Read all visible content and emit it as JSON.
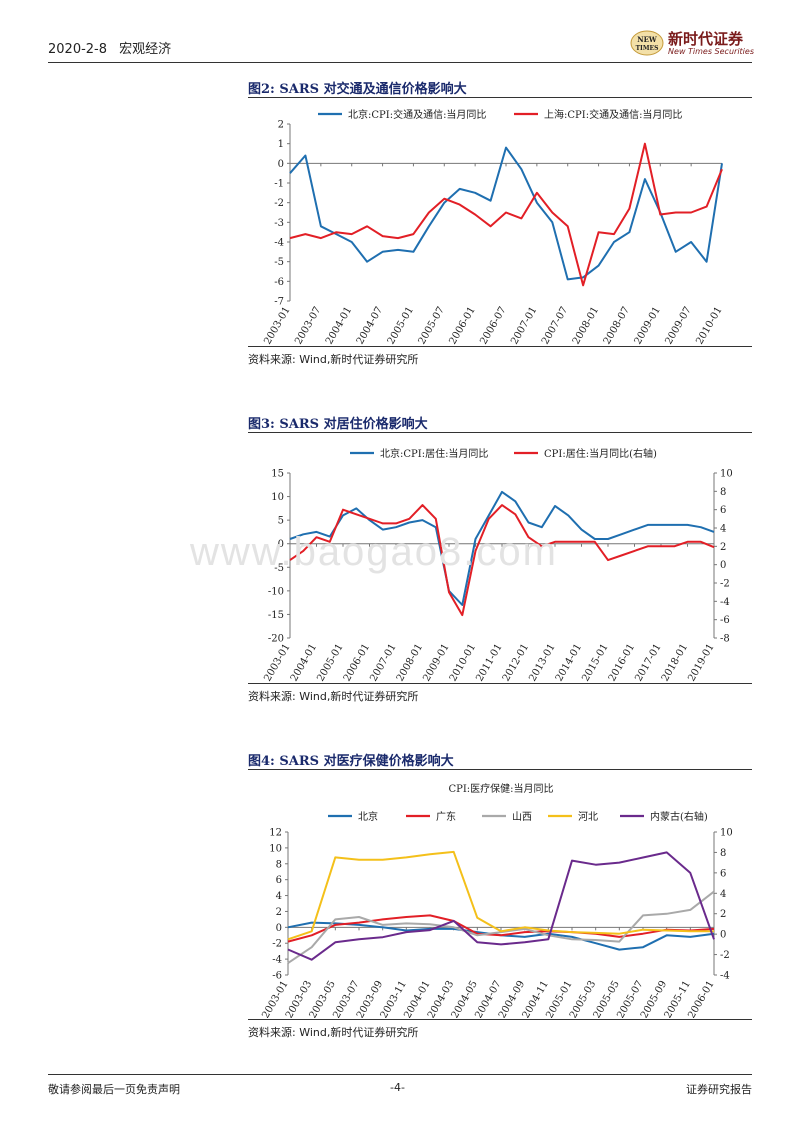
{
  "header": {
    "date": "2020-2-8",
    "section": "宏观经济",
    "brand_cn": "新时代证券",
    "brand_en": "New Times Securities"
  },
  "figures": [
    {
      "title": "图2:  SARS 对交通及通信价格影响大",
      "source": "资料来源:  Wind,新时代证券研究所"
    },
    {
      "title": "图3:  SARS 对居住价格影响大",
      "source": "资料来源:  Wind,新时代证券研究所"
    },
    {
      "title": "图4:  SARS 对医疗保健价格影响大",
      "source": "资料来源:  Wind,新时代证券研究所"
    }
  ],
  "watermark": "www.baogao8.com",
  "footer": {
    "left": "敬请参阅最后一页免责声明",
    "center": "-4-",
    "right": "证券研究报告"
  },
  "colors": {
    "blue": "#1f6fb0",
    "red": "#e21f26",
    "gray": "#a9a9a9",
    "yellow": "#f4c01a",
    "purple": "#6a2a8c"
  },
  "chart_data": [
    {
      "type": "line",
      "title": "",
      "x": [
        "2003-01",
        "2003-04",
        "2003-07",
        "2003-10",
        "2004-01",
        "2004-04",
        "2004-07",
        "2004-10",
        "2005-01",
        "2005-04",
        "2005-07",
        "2005-10",
        "2006-01",
        "2006-04",
        "2006-07",
        "2006-10",
        "2007-01",
        "2007-04",
        "2007-07",
        "2007-10",
        "2008-01",
        "2008-04",
        "2008-07",
        "2008-10",
        "2009-01",
        "2009-04",
        "2009-07",
        "2009-10",
        "2010-01"
      ],
      "xticks": [
        "2003-01",
        "2003-07",
        "2004-01",
        "2004-07",
        "2005-01",
        "2005-07",
        "2006-01",
        "2006-07",
        "2007-01",
        "2007-07",
        "2008-01",
        "2008-07",
        "2009-01",
        "2009-07",
        "2010-01"
      ],
      "ylim": [
        -7,
        2
      ],
      "yticks": [
        "2",
        "1",
        "0",
        "-1",
        "-2",
        "-3",
        "-4",
        "-5",
        "-6",
        "-7"
      ],
      "series": [
        {
          "name": "北京:CPI:交通及通信:当月同比",
          "color": "blue",
          "values": [
            -0.5,
            0.4,
            -3.2,
            -3.6,
            -4.0,
            -5.0,
            -4.5,
            -4.4,
            -4.5,
            -3.2,
            -2.0,
            -1.3,
            -1.5,
            -1.9,
            0.8,
            -0.3,
            -2.0,
            -3.0,
            -5.9,
            -5.8,
            -5.2,
            -4.0,
            -3.5,
            -0.8,
            -2.5,
            -4.5,
            -4.0,
            -5.0,
            0.0
          ]
        },
        {
          "name": "上海:CPI:交通及通信:当月同比",
          "color": "red",
          "values": [
            -3.8,
            -3.6,
            -3.8,
            -3.5,
            -3.6,
            -3.2,
            -3.7,
            -3.8,
            -3.6,
            -2.5,
            -1.8,
            -2.1,
            -2.6,
            -3.2,
            -2.5,
            -2.8,
            -1.5,
            -2.5,
            -3.2,
            -6.2,
            -3.5,
            -3.6,
            -2.3,
            1.0,
            -2.6,
            -2.5,
            -2.5,
            -2.2,
            -0.3
          ]
        }
      ]
    },
    {
      "type": "line",
      "title": "",
      "x": [
        "2003-01",
        "2003-07",
        "2004-01",
        "2004-07",
        "2005-01",
        "2005-07",
        "2006-01",
        "2006-07",
        "2007-01",
        "2007-07",
        "2008-01",
        "2008-07",
        "2009-01",
        "2009-07",
        "2010-01",
        "2010-07",
        "2011-01",
        "2011-07",
        "2012-01",
        "2012-07",
        "2013-01",
        "2013-07",
        "2014-01",
        "2014-07",
        "2015-01",
        "2015-07",
        "2016-01",
        "2016-07",
        "2017-01",
        "2017-07",
        "2018-01",
        "2018-07",
        "2019-01"
      ],
      "xticks": [
        "2003-01",
        "2004-01",
        "2005-01",
        "2006-01",
        "2007-01",
        "2008-01",
        "2009-01",
        "2010-01",
        "2011-01",
        "2012-01",
        "2013-01",
        "2014-01",
        "2015-01",
        "2016-01",
        "2017-01",
        "2018-01",
        "2019-01"
      ],
      "ylim": [
        -20,
        15
      ],
      "yticks": [
        "15",
        "10",
        "5",
        "0",
        "-5",
        "-10",
        "-15",
        "-20"
      ],
      "y2lim": [
        -8,
        10
      ],
      "y2ticks": [
        "10",
        "8",
        "6",
        "4",
        "2",
        "0",
        "-2",
        "-4",
        "-6",
        "-8"
      ],
      "series": [
        {
          "name": "北京:CPI:居住:当月同比",
          "color": "blue",
          "axis": "left",
          "values": [
            1.0,
            2.0,
            2.5,
            1.5,
            6.0,
            7.5,
            5.0,
            3.0,
            3.5,
            4.5,
            5.0,
            3.5,
            -10.0,
            -13.0,
            1.0,
            6.0,
            11.0,
            9.0,
            4.5,
            3.5,
            8.0,
            6.0,
            3.0,
            1.0,
            1.0,
            2.0,
            3.0,
            4.0,
            4.0,
            4.0,
            4.0,
            3.5,
            2.5
          ]
        },
        {
          "name": "CPI:居住:当月同比(右轴)",
          "color": "red",
          "axis": "right",
          "values": [
            0.5,
            1.5,
            3.0,
            2.5,
            6.0,
            5.5,
            5.0,
            4.5,
            4.5,
            5.0,
            6.5,
            5.0,
            -3.0,
            -5.5,
            1.5,
            5.0,
            6.5,
            5.5,
            3.0,
            2.0,
            2.5,
            2.5,
            2.5,
            2.5,
            0.5,
            1.0,
            1.5,
            2.0,
            2.0,
            2.0,
            2.5,
            2.5,
            1.9
          ]
        }
      ]
    },
    {
      "type": "line",
      "title": "CPI:医疗保健:当月同比",
      "x": [
        "2003-01",
        "2003-03",
        "2003-05",
        "2003-07",
        "2003-09",
        "2003-11",
        "2004-01",
        "2004-03",
        "2004-05",
        "2004-07",
        "2004-09",
        "2004-11",
        "2005-01",
        "2005-03",
        "2005-05",
        "2005-07",
        "2005-09",
        "2005-11",
        "2006-01"
      ],
      "xticks": [
        "2003-01",
        "2003-03",
        "2003-05",
        "2003-07",
        "2003-09",
        "2003-11",
        "2004-01",
        "2004-03",
        "2004-05",
        "2004-07",
        "2004-09",
        "2004-11",
        "2005-01",
        "2005-03",
        "2005-05",
        "2005-07",
        "2005-09",
        "2005-11",
        "2006-01"
      ],
      "ylim": [
        -6,
        12
      ],
      "yticks": [
        "12",
        "10",
        "8",
        "6",
        "4",
        "2",
        "0",
        "-2",
        "-4",
        "-6"
      ],
      "y2lim": [
        -4,
        10
      ],
      "y2ticks": [
        "10",
        "8",
        "6",
        "4",
        "2",
        "0",
        "-2",
        "-4"
      ],
      "series": [
        {
          "name": "北京",
          "color": "blue",
          "axis": "left",
          "values": [
            0.0,
            0.6,
            0.5,
            0.3,
            0.0,
            -0.4,
            -0.2,
            -0.2,
            -0.6,
            -1.0,
            -1.2,
            -0.8,
            -1.2,
            -2.0,
            -2.8,
            -2.5,
            -1.0,
            -1.2,
            -0.8
          ]
        },
        {
          "name": "广东",
          "color": "red",
          "axis": "left",
          "values": [
            -1.8,
            -1.0,
            0.3,
            0.6,
            1.0,
            1.3,
            1.5,
            0.8,
            -0.8,
            -1.0,
            -0.6,
            -0.5,
            -0.6,
            -0.8,
            -1.2,
            -0.8,
            -0.3,
            -0.4,
            -0.2
          ]
        },
        {
          "name": "山西",
          "color": "gray",
          "axis": "left",
          "values": [
            -4.5,
            -2.5,
            1.0,
            1.3,
            0.3,
            0.5,
            0.4,
            0.0,
            -1.0,
            -0.6,
            -0.2,
            -1.0,
            -1.5,
            -1.6,
            -1.8,
            1.5,
            1.7,
            2.2,
            4.5
          ]
        },
        {
          "name": "河北",
          "color": "yellow",
          "axis": "left",
          "values": [
            -1.5,
            -0.5,
            8.8,
            8.5,
            8.5,
            8.8,
            9.2,
            9.5,
            1.2,
            -0.5,
            0.0,
            -0.4,
            -0.6,
            -0.7,
            -0.8,
            -0.3,
            -0.4,
            -0.5,
            -0.5
          ]
        },
        {
          "name": "内蒙古(右轴)",
          "color": "purple",
          "axis": "right",
          "values": [
            -1.5,
            -2.5,
            -0.8,
            -0.5,
            -0.3,
            0.2,
            0.4,
            1.3,
            -0.8,
            -1.0,
            -0.8,
            -0.5,
            7.2,
            6.8,
            7.0,
            7.5,
            8.0,
            6.0,
            -0.5
          ]
        }
      ]
    }
  ]
}
